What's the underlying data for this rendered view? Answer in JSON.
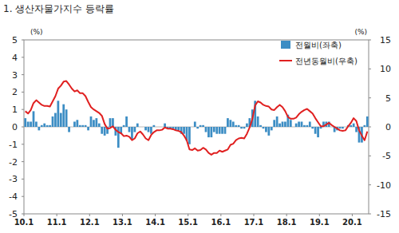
{
  "chart_data": {
    "type": "bar",
    "title": "1. 생산자물가지수 등락률",
    "y_label": "(%)",
    "y2_label": "(%)",
    "categories": [
      "10.1",
      null,
      null,
      null,
      null,
      null,
      null,
      null,
      null,
      null,
      null,
      null,
      "11.1",
      null,
      null,
      null,
      null,
      null,
      null,
      null,
      null,
      null,
      null,
      null,
      "12.1",
      null,
      null,
      null,
      null,
      null,
      null,
      null,
      null,
      null,
      null,
      null,
      "13.1",
      null,
      null,
      null,
      null,
      null,
      null,
      null,
      null,
      null,
      null,
      null,
      "14.1",
      null,
      null,
      null,
      null,
      null,
      null,
      null,
      null,
      null,
      null,
      null,
      "15.1",
      null,
      null,
      null,
      null,
      null,
      null,
      null,
      null,
      null,
      null,
      null,
      "16.1",
      null,
      null,
      null,
      null,
      null,
      null,
      null,
      null,
      null,
      null,
      null,
      "17.1",
      null,
      null,
      null,
      null,
      null,
      null,
      null,
      null,
      null,
      null,
      null,
      "18.1",
      null,
      null,
      null,
      null,
      null,
      null,
      null,
      null,
      null,
      null,
      null,
      "19.1",
      null,
      null,
      null,
      null,
      null,
      null,
      null,
      null,
      null,
      null,
      null,
      "20.1",
      null,
      null,
      null,
      null,
      null
    ],
    "series": [
      {
        "name": "전월비(좌축)",
        "type": "bar",
        "color": "#3c8dc4",
        "values": [
          0.5,
          0.3,
          0.3,
          0.9,
          0.3,
          -0.2,
          0.1,
          0.2,
          0.1,
          0.1,
          0.6,
          0.8,
          1.5,
          0.8,
          1.3,
          1.0,
          -0.3,
          0.0,
          0.3,
          0.4,
          0.1,
          0.1,
          0.1,
          -0.2,
          0.6,
          0.4,
          0.5,
          0.2,
          -0.4,
          -0.5,
          -0.4,
          0.5,
          0.5,
          -0.5,
          -1.2,
          -0.4,
          0.1,
          0.6,
          -0.3,
          -0.7,
          -0.3,
          0.2,
          0.0,
          0.0,
          -0.2,
          -0.3,
          -0.4,
          0.1,
          0.0,
          0.0,
          0.0,
          0.2,
          -0.1,
          -0.1,
          -0.1,
          -0.2,
          -0.2,
          -0.4,
          -0.4,
          -0.8,
          -1.0,
          0.0,
          0.3,
          -0.1,
          0.1,
          0.1,
          -0.3,
          -0.6,
          -0.6,
          -0.3,
          -0.4,
          -0.4,
          -0.4,
          -0.4,
          0.5,
          0.4,
          0.3,
          0.1,
          0.1,
          -0.1,
          -0.1,
          0.2,
          0.5,
          1.0,
          1.5,
          0.6,
          0.1,
          -0.1,
          -0.3,
          -0.5,
          -0.2,
          0.4,
          0.6,
          0.2,
          0.3,
          0.3,
          0.7,
          0.4,
          0.0,
          0.2,
          0.3,
          0.3,
          0.1,
          0.1,
          0.3,
          -0.1,
          -0.4,
          -0.6,
          -0.1,
          0.3,
          0.3,
          0.3,
          0.0,
          -0.3,
          -0.2,
          -0.1,
          -0.1,
          0.0,
          0.1,
          0.1,
          0.2,
          -0.3,
          -0.9,
          -0.9,
          0.1,
          0.6
        ]
      },
      {
        "name": "전년동월비(우축)",
        "type": "line",
        "axis": "y2",
        "color": "#e02020",
        "values": [
          2.7,
          2.3,
          2.9,
          4.1,
          4.6,
          4.2,
          3.8,
          3.6,
          3.6,
          3.5,
          4.4,
          5.3,
          6.6,
          7.1,
          7.8,
          7.9,
          7.3,
          6.6,
          6.1,
          6.3,
          5.8,
          5.8,
          5.3,
          4.3,
          3.4,
          3.0,
          2.7,
          2.4,
          1.9,
          0.5,
          -0.3,
          -0.2,
          0.1,
          -0.5,
          -0.9,
          -1.1,
          -1.6,
          -1.5,
          -1.7,
          -2.3,
          -2.0,
          -1.1,
          -0.8,
          -1.3,
          -2.0,
          -2.3,
          -1.4,
          -0.9,
          -0.6,
          -0.6,
          -0.5,
          -0.1,
          -0.3,
          -0.3,
          -0.4,
          -0.6,
          -0.7,
          -0.9,
          -1.5,
          -2.3,
          -3.9,
          -4.0,
          -3.7,
          -4.1,
          -4.0,
          -3.6,
          -3.9,
          -4.5,
          -4.8,
          -4.5,
          -4.5,
          -4.1,
          -4.3,
          -4.1,
          -3.9,
          -3.1,
          -2.9,
          -2.3,
          -2.0,
          -1.9,
          -2.0,
          -1.2,
          -0.1,
          1.4,
          3.7,
          4.4,
          4.2,
          3.8,
          3.6,
          3.5,
          3.0,
          2.9,
          3.4,
          3.8,
          3.4,
          2.7,
          1.7,
          1.4,
          1.4,
          1.6,
          2.2,
          2.6,
          2.9,
          3.1,
          2.7,
          2.3,
          1.5,
          0.8,
          0.1,
          0.1,
          0.4,
          0.7,
          0.3,
          0.0,
          -0.3,
          -0.6,
          -0.7,
          -0.6,
          0.1,
          0.7,
          1.5,
          1.0,
          -0.6,
          -1.5,
          -2.3,
          -0.8
        ]
      }
    ],
    "ylim": [
      -5,
      5
    ],
    "yticks": [
      -5,
      -4,
      -3,
      -2,
      -1,
      0,
      1,
      2,
      3,
      4,
      5
    ],
    "y2lim": [
      -15,
      15
    ],
    "y2ticks": [
      -15,
      -10,
      -5,
      0,
      5,
      10,
      15
    ],
    "grid": false,
    "legend": "top-right"
  }
}
